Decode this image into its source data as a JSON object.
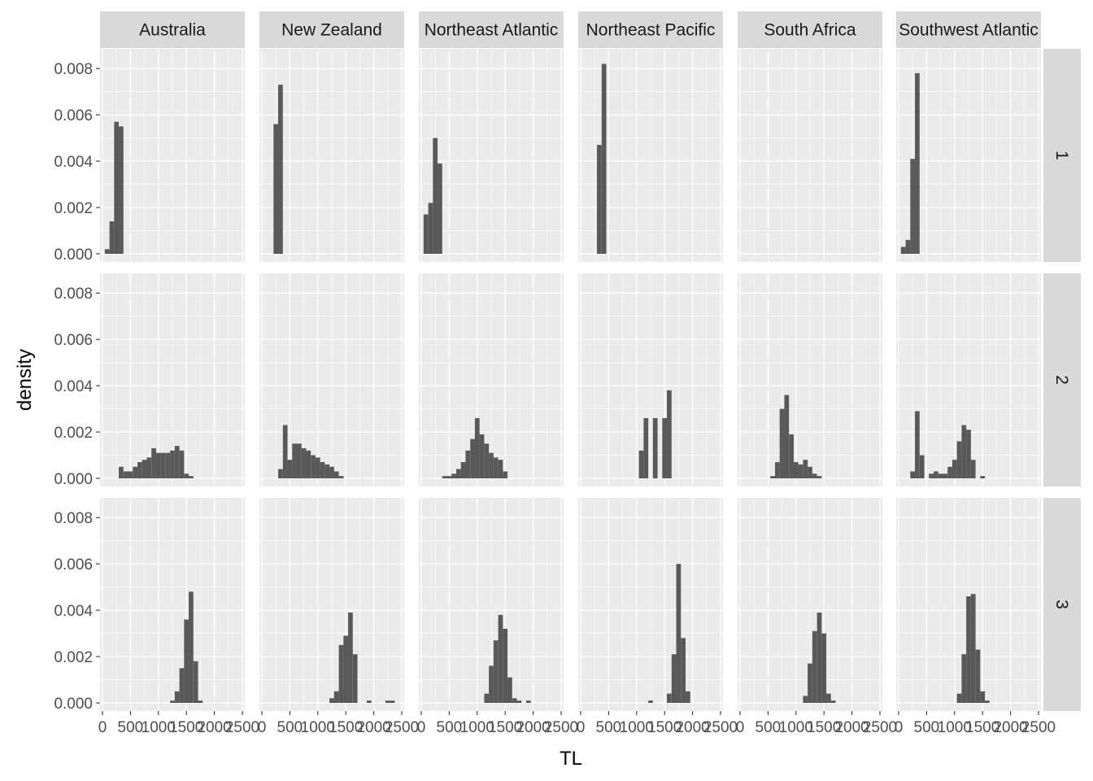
{
  "chart_data": {
    "type": "histogram",
    "layout": "facet_grid",
    "xlabel": "TL",
    "ylabel": "density",
    "xlim": [
      0,
      2500
    ],
    "ylim": [
      0,
      0.0085
    ],
    "x_ticks": [
      0,
      500,
      1000,
      1500,
      2000,
      2500
    ],
    "x_tick_labels": [
      "0",
      "500",
      "1000",
      "1500",
      "2000",
      "2500"
    ],
    "y_ticks": [
      0,
      0.002,
      0.004,
      0.006,
      0.008
    ],
    "y_tick_labels": [
      "0.000",
      "0.002",
      "0.004",
      "0.006",
      "0.008"
    ],
    "grid": true,
    "bar_color": "#595959",
    "panel_color": "#ebebeb",
    "strip_color": "#d9d9d9",
    "columns": [
      "Australia",
      "New Zealand",
      "Northeast Atlantic",
      "Northeast Pacific",
      "South Africa",
      "Southwest Atlantic"
    ],
    "rows": [
      "1",
      "2",
      "3"
    ],
    "bin_width": 83.3,
    "panels": [
      {
        "col": "Australia",
        "row": "1",
        "bins": [
          [
            83,
            0.0002
          ],
          [
            167,
            0.0014
          ],
          [
            250,
            0.0057
          ],
          [
            333,
            0.0055
          ]
        ]
      },
      {
        "col": "New Zealand",
        "row": "1",
        "bins": [
          [
            250,
            0.0056
          ],
          [
            333,
            0.0073
          ]
        ]
      },
      {
        "col": "Northeast Atlantic",
        "row": "1",
        "bins": [
          [
            83,
            0.0017
          ],
          [
            167,
            0.0022
          ],
          [
            250,
            0.005
          ],
          [
            333,
            0.0039
          ]
        ]
      },
      {
        "col": "Northeast Pacific",
        "row": "1",
        "bins": [
          [
            333,
            0.0047
          ],
          [
            417,
            0.0082
          ]
        ]
      },
      {
        "col": "South Africa",
        "row": "1",
        "bins": []
      },
      {
        "col": "Southwest Atlantic",
        "row": "1",
        "bins": [
          [
            83,
            0.0003
          ],
          [
            167,
            0.0006
          ],
          [
            250,
            0.0041
          ],
          [
            333,
            0.0078
          ]
        ]
      },
      {
        "col": "Australia",
        "row": "2",
        "bins": [
          [
            333,
            0.0005
          ],
          [
            417,
            0.0003
          ],
          [
            500,
            0.0003
          ],
          [
            583,
            0.0005
          ],
          [
            667,
            0.0007
          ],
          [
            750,
            0.0008
          ],
          [
            833,
            0.0009
          ],
          [
            917,
            0.0013
          ],
          [
            1000,
            0.0011
          ],
          [
            1083,
            0.0011
          ],
          [
            1167,
            0.0011
          ],
          [
            1250,
            0.0012
          ],
          [
            1333,
            0.0014
          ],
          [
            1417,
            0.0012
          ],
          [
            1500,
            0.0002
          ],
          [
            1583,
            0.0001
          ]
        ]
      },
      {
        "col": "New Zealand",
        "row": "2",
        "bins": [
          [
            333,
            0.0004
          ],
          [
            417,
            0.0023
          ],
          [
            500,
            0.0008
          ],
          [
            583,
            0.0015
          ],
          [
            667,
            0.0015
          ],
          [
            750,
            0.0013
          ],
          [
            833,
            0.0012
          ],
          [
            917,
            0.001
          ],
          [
            1000,
            0.0009
          ],
          [
            1083,
            0.0007
          ],
          [
            1167,
            0.0006
          ],
          [
            1250,
            0.0005
          ],
          [
            1333,
            0.0003
          ],
          [
            1417,
            0.0001
          ]
        ]
      },
      {
        "col": "Northeast Atlantic",
        "row": "2",
        "bins": [
          [
            417,
            0.0001
          ],
          [
            500,
            0.0001
          ],
          [
            583,
            0.0002
          ],
          [
            667,
            0.0004
          ],
          [
            750,
            0.0007
          ],
          [
            833,
            0.0012
          ],
          [
            917,
            0.0017
          ],
          [
            1000,
            0.0026
          ],
          [
            1083,
            0.0019
          ],
          [
            1167,
            0.0015
          ],
          [
            1250,
            0.0011
          ],
          [
            1333,
            0.0009
          ],
          [
            1417,
            0.0008
          ],
          [
            1500,
            0.0003
          ]
        ]
      },
      {
        "col": "Northeast Pacific",
        "row": "2",
        "bins": [
          [
            1083,
            0.0012
          ],
          [
            1167,
            0.0026
          ],
          [
            1333,
            0.0026
          ],
          [
            1500,
            0.0026
          ],
          [
            1583,
            0.0038
          ]
        ]
      },
      {
        "col": "South Africa",
        "row": "2",
        "bins": [
          [
            583,
            0.0001
          ],
          [
            667,
            0.0007
          ],
          [
            750,
            0.003
          ],
          [
            833,
            0.0036
          ],
          [
            917,
            0.0019
          ],
          [
            1000,
            0.0007
          ],
          [
            1083,
            0.0006
          ],
          [
            1167,
            0.0008
          ],
          [
            1250,
            0.0005
          ],
          [
            1333,
            0.0002
          ],
          [
            1417,
            0.0001
          ]
        ]
      },
      {
        "col": "Southwest Atlantic",
        "row": "2",
        "bins": [
          [
            250,
            0.0003
          ],
          [
            333,
            0.0029
          ],
          [
            417,
            0.001
          ],
          [
            583,
            0.0002
          ],
          [
            667,
            0.0003
          ],
          [
            750,
            0.0002
          ],
          [
            833,
            0.0002
          ],
          [
            917,
            0.0005
          ],
          [
            1000,
            0.0008
          ],
          [
            1083,
            0.0016
          ],
          [
            1167,
            0.0023
          ],
          [
            1250,
            0.0021
          ],
          [
            1333,
            0.0008
          ],
          [
            1500,
            0.0001
          ]
        ]
      },
      {
        "col": "Australia",
        "row": "3",
        "bins": [
          [
            1250,
            0.0001
          ],
          [
            1333,
            0.0005
          ],
          [
            1417,
            0.0015
          ],
          [
            1500,
            0.0036
          ],
          [
            1583,
            0.0048
          ],
          [
            1667,
            0.0018
          ],
          [
            1750,
            0.0001
          ]
        ]
      },
      {
        "col": "New Zealand",
        "row": "3",
        "bins": [
          [
            1250,
            0.0002
          ],
          [
            1333,
            0.0005
          ],
          [
            1417,
            0.0025
          ],
          [
            1500,
            0.0029
          ],
          [
            1583,
            0.0039
          ],
          [
            1667,
            0.0021
          ],
          [
            1917,
            0.0001
          ],
          [
            2250,
            0.0001
          ],
          [
            2333,
            0.0001
          ]
        ]
      },
      {
        "col": "Northeast Atlantic",
        "row": "3",
        "bins": [
          [
            1167,
            0.0004
          ],
          [
            1250,
            0.0016
          ],
          [
            1333,
            0.0027
          ],
          [
            1417,
            0.0038
          ],
          [
            1500,
            0.0032
          ],
          [
            1583,
            0.0011
          ],
          [
            1667,
            0.0002
          ],
          [
            1750,
            0.0001
          ],
          [
            1917,
            0.0001
          ]
        ]
      },
      {
        "col": "Northeast Pacific",
        "row": "3",
        "bins": [
          [
            1250,
            0.0001
          ],
          [
            1583,
            0.0004
          ],
          [
            1667,
            0.0021
          ],
          [
            1750,
            0.006
          ],
          [
            1833,
            0.0028
          ],
          [
            1917,
            0.0005
          ]
        ]
      },
      {
        "col": "South Africa",
        "row": "3",
        "bins": [
          [
            1167,
            0.0003
          ],
          [
            1250,
            0.0017
          ],
          [
            1333,
            0.0031
          ],
          [
            1417,
            0.0039
          ],
          [
            1500,
            0.003
          ],
          [
            1583,
            0.0004
          ],
          [
            1667,
            0.0001
          ]
        ]
      },
      {
        "col": "Southwest Atlantic",
        "row": "3",
        "bins": [
          [
            1083,
            0.0004
          ],
          [
            1167,
            0.0021
          ],
          [
            1250,
            0.0046
          ],
          [
            1333,
            0.0047
          ],
          [
            1417,
            0.0023
          ],
          [
            1500,
            0.0005
          ],
          [
            1583,
            0.0001
          ]
        ]
      }
    ]
  }
}
